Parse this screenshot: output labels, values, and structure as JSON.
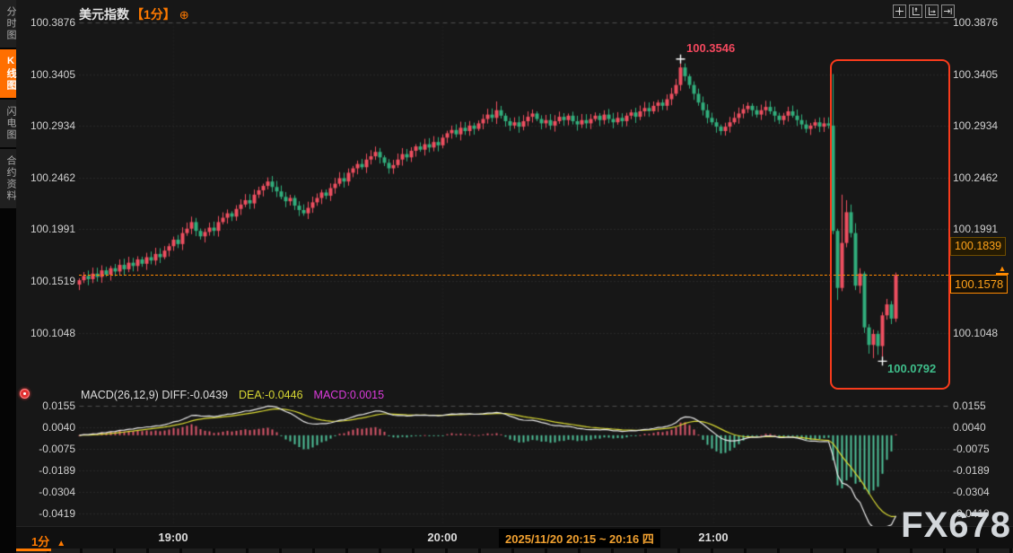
{
  "title": {
    "symbol": "美元指数",
    "period": "【1分】",
    "gear_icon": "circle-plus-icon"
  },
  "sidebar": {
    "items": [
      {
        "label": "分时图",
        "active": false
      },
      {
        "label": "K线图",
        "active": true
      },
      {
        "label": "闪电图",
        "active": false
      },
      {
        "label": "合约资料",
        "active": false
      }
    ]
  },
  "toolbar": {
    "icons": [
      "crosshair-move-icon",
      "y-axis-scale-icon",
      "x-axis-scale-icon",
      "jump-to-latest-icon"
    ]
  },
  "price_tags": {
    "prev": "100.1839",
    "last": "100.1578"
  },
  "annotations": {
    "high": "100.3546",
    "low": "100.0792"
  },
  "macd_legend": {
    "name": "MACD(26,12,9)",
    "diff": "DIFF:-0.0439",
    "dea": "DEA:-0.0446",
    "macd": "MACD:0.0015"
  },
  "x_axis": {
    "ticks": [
      "19:00",
      "20:00",
      "21:00"
    ],
    "range_label": "2025/11/20 20:15 ~ 20:16 四"
  },
  "timeframe": {
    "label": "1分",
    "arrow": "▲"
  },
  "watermark": "FX678",
  "colors": {
    "up": "#ee4f60",
    "down": "#31ae7c",
    "diff_line": "#e8e8e8",
    "dea_line": "#d8d833",
    "macd_value": "#dd3bdd",
    "accent": "#ff7a00",
    "highlight_box": "#f83b1c",
    "grid_dot": "#383838",
    "grid_dash": "#4d4d4d",
    "hist_up": "#d9566a",
    "hist_down": "#4fbf98"
  },
  "chart_data": {
    "type": "candlestick",
    "symbol": "美元指数",
    "interval": "1分",
    "title": "美元指数【1分】",
    "price_axis_levels": [
      100.3876,
      100.3405,
      100.2934,
      100.2462,
      100.1991,
      100.1519,
      100.1048
    ],
    "session_high": 100.3546,
    "session_low": 100.0792,
    "last_price": 100.1578,
    "prev_tag_price": 100.1839,
    "high_marker_index": 134,
    "low_marker_index": 179,
    "x_ticks": [
      "19:00",
      "20:00",
      "21:00"
    ],
    "highlighted_range": "2025/11/20 20:15 ~ 20:16 四",
    "closes": [
      100.153,
      100.157,
      100.154,
      100.159,
      100.156,
      100.162,
      100.158,
      100.164,
      100.161,
      100.167,
      100.163,
      100.169,
      100.166,
      100.172,
      100.168,
      100.174,
      100.171,
      100.177,
      100.174,
      100.18,
      100.184,
      100.19,
      100.186,
      100.196,
      100.2,
      100.206,
      100.198,
      100.193,
      100.197,
      100.201,
      100.198,
      100.206,
      100.21,
      100.214,
      100.211,
      100.218,
      100.222,
      100.226,
      100.223,
      100.231,
      100.235,
      100.239,
      100.243,
      100.238,
      100.234,
      100.229,
      100.225,
      100.228,
      100.221,
      100.217,
      100.214,
      100.219,
      100.224,
      100.228,
      100.233,
      100.23,
      100.237,
      100.241,
      100.246,
      100.243,
      100.251,
      100.255,
      100.259,
      100.256,
      100.263,
      100.266,
      100.27,
      100.265,
      100.26,
      100.255,
      100.258,
      100.263,
      100.268,
      100.265,
      100.271,
      100.275,
      100.272,
      100.277,
      100.274,
      100.279,
      100.276,
      100.283,
      100.287,
      100.29,
      100.286,
      100.292,
      100.289,
      100.294,
      100.291,
      100.296,
      100.3,
      100.304,
      100.301,
      100.308,
      100.303,
      100.298,
      100.294,
      100.297,
      100.293,
      100.298,
      100.302,
      100.305,
      100.3,
      100.296,
      100.299,
      100.294,
      100.298,
      100.302,
      100.299,
      100.303,
      100.298,
      100.295,
      100.299,
      100.296,
      100.3,
      100.303,
      100.299,
      100.304,
      100.3,
      100.297,
      100.301,
      100.298,
      100.303,
      100.306,
      100.302,
      100.307,
      100.31,
      100.307,
      100.312,
      100.315,
      100.312,
      100.318,
      100.323,
      100.331,
      100.347,
      100.339,
      100.331,
      100.323,
      100.315,
      100.308,
      100.301,
      100.297,
      100.293,
      100.289,
      100.293,
      100.297,
      100.301,
      100.305,
      100.309,
      100.312,
      100.308,
      100.304,
      100.308,
      100.311,
      100.307,
      100.303,
      100.299,
      100.303,
      100.307,
      100.303,
      100.299,
      100.295,
      100.291,
      100.294,
      100.297,
      100.293,
      100.296,
      100.294,
      100.198,
      100.146,
      100.187,
      100.215,
      100.196,
      100.148,
      100.159,
      100.11,
      100.094,
      100.104,
      100.093,
      100.121,
      100.131,
      100.118,
      100.1578
    ],
    "candle_overrides": {
      "93": {
        "h": 100.316
      },
      "134": {
        "h": 100.3546
      },
      "168": {
        "o": 100.294,
        "h": 100.341,
        "l": 100.195,
        "c": 100.198
      },
      "169": {
        "o": 100.198,
        "h": 100.2,
        "l": 100.135,
        "c": 100.146
      },
      "170": {
        "o": 100.146,
        "h": 100.231,
        "l": 100.143,
        "c": 100.187
      },
      "171": {
        "o": 100.187,
        "h": 100.226,
        "l": 100.183,
        "c": 100.215
      },
      "172": {
        "o": 100.215,
        "h": 100.222,
        "l": 100.192,
        "c": 100.196
      },
      "173": {
        "o": 100.196,
        "h": 100.205,
        "l": 100.144,
        "c": 100.148
      },
      "174": {
        "o": 100.148,
        "h": 100.164,
        "l": 100.141,
        "c": 100.159
      },
      "175": {
        "o": 100.159,
        "h": 100.161,
        "l": 100.105,
        "c": 100.11
      },
      "176": {
        "o": 100.11,
        "h": 100.113,
        "l": 100.086,
        "c": 100.094
      },
      "177": {
        "o": 100.094,
        "h": 100.108,
        "l": 100.082,
        "c": 100.104
      },
      "178": {
        "o": 100.104,
        "h": 100.107,
        "l": 100.085,
        "c": 100.093
      },
      "179": {
        "o": 100.093,
        "h": 100.124,
        "l": 100.0792,
        "c": 100.121
      },
      "180": {
        "o": 100.121,
        "h": 100.136,
        "l": 100.117,
        "c": 100.131
      },
      "181": {
        "o": 100.131,
        "h": 100.134,
        "l": 100.113,
        "c": 100.118
      },
      "182": {
        "o": 100.118,
        "h": 100.16,
        "l": 100.115,
        "c": 100.1578
      }
    },
    "macd": {
      "params": [
        26,
        12,
        9
      ],
      "diff": -0.0439,
      "dea": -0.0446,
      "macd": 0.0015,
      "axis_levels": [
        0.0155,
        0.004,
        -0.0075,
        -0.0189,
        -0.0304,
        -0.0419
      ]
    }
  }
}
